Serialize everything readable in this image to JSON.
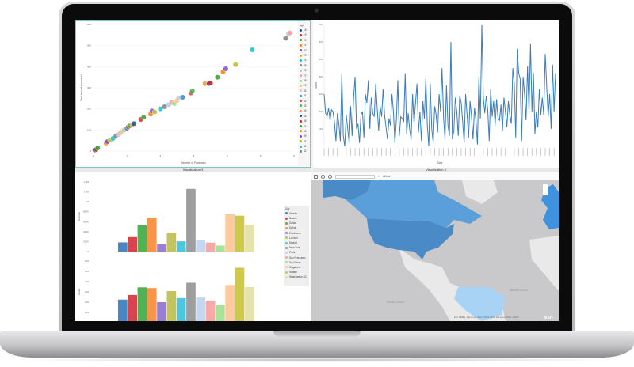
{
  "titles": {
    "viz_bottom_left": "Visualization 3",
    "viz_bottom_right": "Visualization 4"
  },
  "scatter": {
    "xlabel": "Number of Purchases",
    "ylabel": "Total amount purchased",
    "legend_title": "Age",
    "xticks": [
      0,
      1,
      2,
      3,
      4,
      5,
      6
    ],
    "yticks": [
      0,
      100,
      200,
      300,
      400,
      500,
      600
    ],
    "legend_items": [
      "18",
      "19",
      "20",
      "21",
      "22",
      "23",
      "24",
      "25",
      "26",
      "27",
      "28",
      "29",
      "30",
      "31",
      "32",
      "33",
      "34",
      "35",
      "36",
      "37",
      "38",
      "39",
      "40",
      "41",
      "42"
    ],
    "points": [
      [
        0.05,
        5
      ],
      [
        0.1,
        8
      ],
      [
        0.15,
        15
      ],
      [
        0.45,
        38
      ],
      [
        0.5,
        45
      ],
      [
        0.6,
        52
      ],
      [
        0.7,
        60
      ],
      [
        0.8,
        70
      ],
      [
        0.9,
        78
      ],
      [
        0.95,
        85
      ],
      [
        1.0,
        90
      ],
      [
        1.05,
        95
      ],
      [
        1.1,
        100
      ],
      [
        1.2,
        108
      ],
      [
        1.25,
        115
      ],
      [
        1.3,
        120
      ],
      [
        1.4,
        125
      ],
      [
        1.45,
        130
      ],
      [
        1.7,
        150
      ],
      [
        1.8,
        160
      ],
      [
        2.05,
        175
      ],
      [
        2.1,
        190
      ],
      [
        2.2,
        185
      ],
      [
        2.4,
        200
      ],
      [
        2.55,
        210
      ],
      [
        2.7,
        220
      ],
      [
        2.8,
        230
      ],
      [
        2.9,
        225
      ],
      [
        3.0,
        240
      ],
      [
        3.05,
        250
      ],
      [
        3.2,
        255
      ],
      [
        3.5,
        275
      ],
      [
        3.55,
        285
      ],
      [
        4.0,
        320
      ],
      [
        4.15,
        320
      ],
      [
        4.2,
        322
      ],
      [
        4.45,
        350
      ],
      [
        4.65,
        375
      ],
      [
        4.75,
        390
      ],
      [
        5.1,
        410
      ],
      [
        5.7,
        480
      ],
      [
        6.9,
        535
      ],
      [
        7.0,
        555
      ],
      [
        7.05,
        560
      ]
    ],
    "colors": [
      "#1f4e8c",
      "#d62728",
      "#2ca02c",
      "#ff7f0e",
      "#7b4fc9",
      "#bcbd22",
      "#17becf",
      "#7f7f7f",
      "#aec7e8",
      "#ff9896",
      "#98df8a",
      "#ffbb78",
      "#c7c7c7",
      "#3b86c6",
      "#d9404a",
      "#4cb050",
      "#f7964a"
    ]
  },
  "line": {
    "xlabel": "Date",
    "ylabel": "Sales",
    "yticks": [
      100,
      200,
      300,
      400,
      500,
      600,
      700
    ],
    "ylim": [
      0,
      700
    ],
    "values": [
      300,
      190,
      170,
      220,
      150,
      210,
      200,
      140,
      30,
      190,
      130,
      30,
      420,
      60,
      0,
      180,
      100,
      20,
      230,
      60,
      280,
      400,
      100,
      130,
      20,
      180,
      200,
      50,
      300,
      250,
      380,
      100,
      280,
      190,
      170,
      360,
      220,
      90,
      230,
      170,
      330,
      180,
      110,
      40,
      160,
      120,
      300,
      200,
      20,
      150,
      380,
      60,
      170,
      160,
      140,
      420,
      70,
      190,
      100,
      40,
      300,
      130,
      250,
      360,
      80,
      200,
      30,
      260,
      160,
      390,
      120,
      0,
      360,
      100,
      20,
      230,
      180,
      80,
      300,
      200,
      450,
      170,
      40,
      350,
      120,
      60,
      600,
      40,
      90,
      280,
      200,
      60,
      290,
      250,
      140,
      20,
      300,
      180,
      50,
      260,
      170,
      40,
      220,
      150,
      10,
      400,
      160,
      700,
      280,
      190,
      290,
      210,
      30,
      330,
      170,
      260,
      120,
      270,
      160,
      150,
      240,
      90,
      280,
      200,
      110,
      260,
      180,
      130,
      450,
      360,
      50,
      560,
      420,
      390,
      30,
      400,
      300,
      150,
      460,
      200,
      590,
      200,
      420,
      70,
      200,
      110,
      330,
      180,
      280,
      180,
      530,
      350,
      170,
      300,
      100,
      470,
      200,
      420
    ],
    "color": "#3a7dbd"
  },
  "bars": {
    "legend_title": "City",
    "categories": [
      "Atlanta",
      "Boston",
      "Dallas",
      "Dubai",
      "Eindhoven",
      "London",
      "Madrid",
      "New York",
      "Paris",
      "San Francisco",
      "Sao Paulo",
      "Singapore",
      "Seattle",
      "Washington DC"
    ],
    "colors": [
      "#4a86c2",
      "#d9434d",
      "#4fb253",
      "#f7964a",
      "#9b7dd4",
      "#c4c45c",
      "#4ec6dd",
      "#9e9e9e",
      "#c4d7ef",
      "#f7a8a8",
      "#a8e29b",
      "#fcca9c",
      "#cfc94a",
      "#e5e3ab"
    ],
    "top": {
      "ylabel": "Revenue",
      "yticks": [
        "0",
        "200K",
        "400K",
        "600K",
        "800K",
        "1M",
        "1.2M",
        "1.4M"
      ],
      "ylim": [
        0,
        1400000
      ],
      "values": [
        184000,
        290000,
        526000,
        684000,
        147000,
        379000,
        205000,
        1260000,
        226000,
        179000,
        121000,
        753000,
        721000,
        542000
      ]
    },
    "bottom": {
      "ylabel": "Count",
      "yticks": [
        "0",
        "100",
        "200",
        "300",
        "400",
        "500",
        "600"
      ],
      "ylim": [
        0,
        600
      ],
      "values": [
        225,
        270,
        344,
        337,
        200,
        308,
        240,
        389,
        245,
        216,
        175,
        366,
        535,
        346
      ]
    }
  },
  "map": {
    "search_placeholder": "",
    "layer_label": "Africa",
    "ocean_labels": [
      "Pacific Ocean",
      "Atlantic Ocean"
    ],
    "attribution": "Esri, HERE, DeLorme, NGA, USGS | Esri, DeLorme, NGA, USGS",
    "brand": "esri",
    "colors": {
      "ocean": "#c9c9cc",
      "land": "#e9e9ea",
      "usa": "#4a8ac6",
      "canada": "#5a9fd9",
      "brazil": "#a9d3f4",
      "europe": "#3f92dd"
    }
  }
}
